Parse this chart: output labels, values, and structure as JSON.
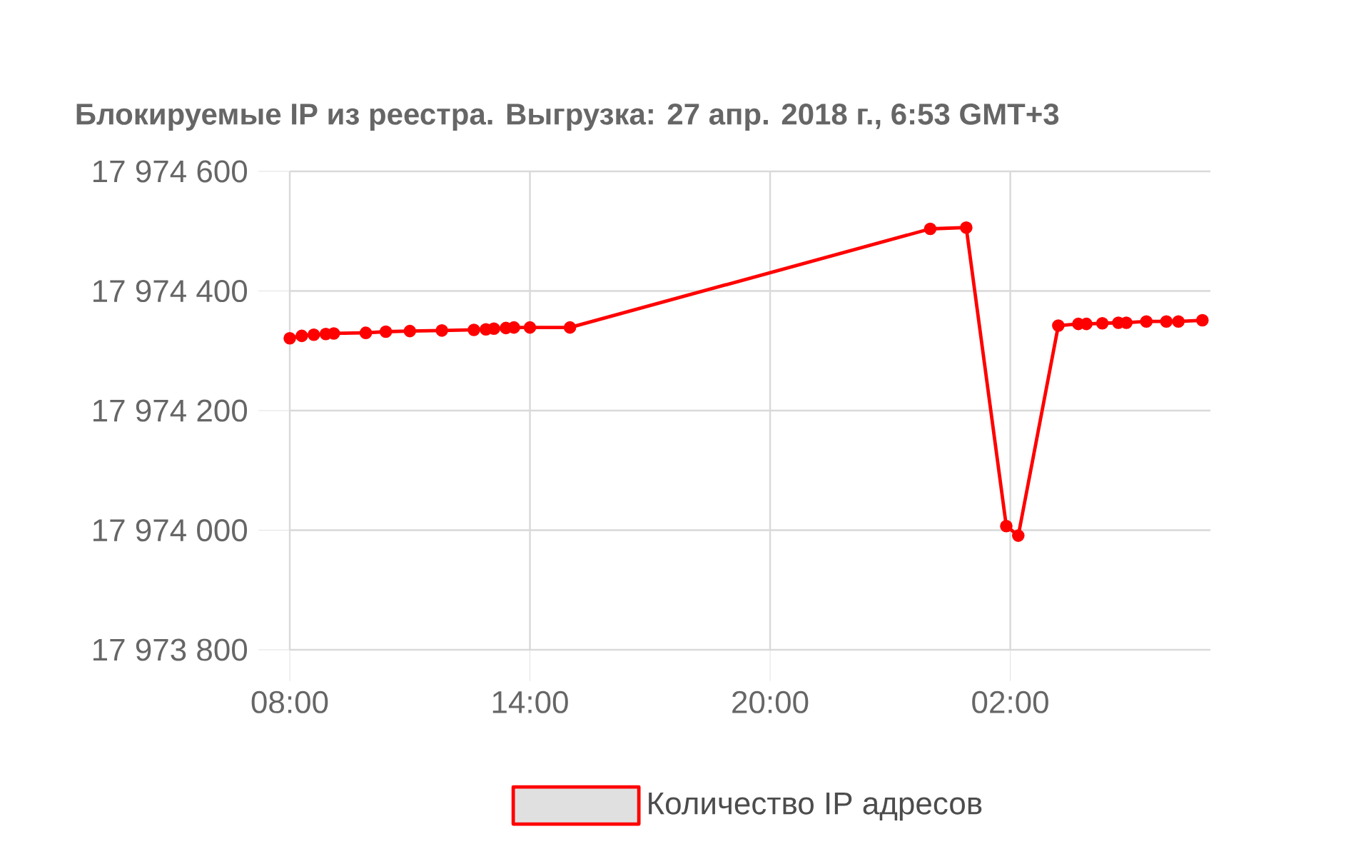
{
  "chart_data": {
    "type": "line",
    "title": "Блокируемые IP из реестра. Выгрузка: 27 апр. 2018 г., 6:53 GMT+3",
    "x": [
      "2018-04-26T08:00",
      "2018-04-26T08:18",
      "2018-04-26T08:36",
      "2018-04-26T08:54",
      "2018-04-26T09:06",
      "2018-04-26T09:54",
      "2018-04-26T10:24",
      "2018-04-26T11:00",
      "2018-04-26T11:48",
      "2018-04-26T12:36",
      "2018-04-26T12:54",
      "2018-04-26T13:06",
      "2018-04-26T13:24",
      "2018-04-26T13:36",
      "2018-04-26T14:00",
      "2018-04-26T15:00",
      "2018-04-27T00:00",
      "2018-04-27T00:54",
      "2018-04-27T01:54",
      "2018-04-27T02:12",
      "2018-04-27T03:12",
      "2018-04-27T03:42",
      "2018-04-27T03:54",
      "2018-04-27T04:18",
      "2018-04-27T04:42",
      "2018-04-27T04:54",
      "2018-04-27T05:24",
      "2018-04-27T05:54",
      "2018-04-27T06:12",
      "2018-04-27T06:48"
    ],
    "series": [
      {
        "name": "Количество IP адресов",
        "color": "#ff0000",
        "values": [
          17974321,
          17974325,
          17974327,
          17974328,
          17974329,
          17974330,
          17974332,
          17974333,
          17974334,
          17974335,
          17974336,
          17974337,
          17974338,
          17974339,
          17974339,
          17974339,
          17974504,
          17974506,
          17974007,
          17973991,
          17974342,
          17974345,
          17974345,
          17974346,
          17974347,
          17974347,
          17974349,
          17974349,
          17974349,
          17974351
        ]
      }
    ],
    "xlim": [
      "2018-04-26T08:00",
      "2018-04-27T07:00"
    ],
    "xticks": [
      {
        "value": "2018-04-26T08:00",
        "label": "08:00"
      },
      {
        "value": "2018-04-26T14:00",
        "label": "14:00"
      },
      {
        "value": "2018-04-26T20:00",
        "label": "20:00"
      },
      {
        "value": "2018-04-27T02:00",
        "label": "02:00"
      }
    ],
    "ylim": [
      17973800,
      17974600
    ],
    "yticks": [
      {
        "value": 17973800,
        "label": "17 973 800"
      },
      {
        "value": 17974000,
        "label": "17 974 000"
      },
      {
        "value": 17974200,
        "label": "17 974 200"
      },
      {
        "value": 17974400,
        "label": "17 974 400"
      },
      {
        "value": 17974600,
        "label": "17 974 600"
      }
    ],
    "grid": true,
    "legend": "bottom",
    "marker": "circle",
    "line_style": "solid"
  }
}
